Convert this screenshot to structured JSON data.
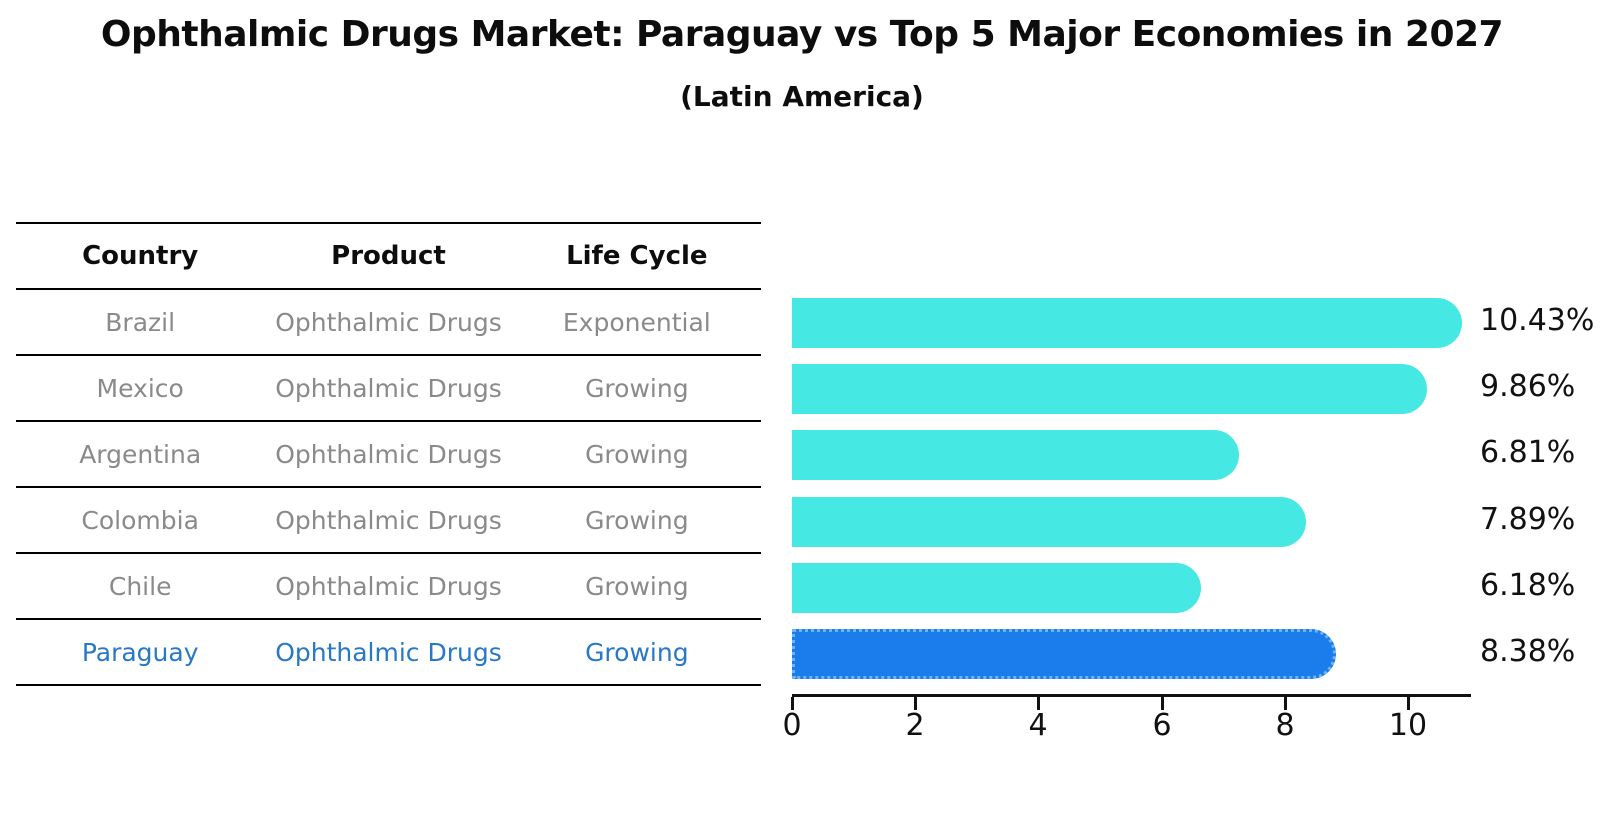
{
  "title": "Ophthalmic Drugs Market: Paraguay vs Top 5 Major Economies in 2027",
  "subtitle": "(Latin America)",
  "table": {
    "headers": [
      "Country",
      "Product",
      "Life Cycle"
    ],
    "rows": [
      {
        "country": "Brazil",
        "product": "Ophthalmic Drugs",
        "life_cycle": "Exponential",
        "highlight": false
      },
      {
        "country": "Mexico",
        "product": "Ophthalmic Drugs",
        "life_cycle": "Growing",
        "highlight": false
      },
      {
        "country": "Argentina",
        "product": "Ophthalmic Drugs",
        "life_cycle": "Growing",
        "highlight": false
      },
      {
        "country": "Colombia",
        "product": "Ophthalmic Drugs",
        "life_cycle": "Growing",
        "highlight": false
      },
      {
        "country": "Chile",
        "product": "Ophthalmic Drugs",
        "life_cycle": "Growing",
        "highlight": false
      },
      {
        "country": "Paraguay",
        "product": "Ophthalmic Drugs",
        "life_cycle": "Growing",
        "highlight": true
      }
    ]
  },
  "chart_data": {
    "type": "bar",
    "orientation": "horizontal",
    "title": "Ophthalmic Drugs Market: Paraguay vs Top 5 Major Economies in 2027",
    "subtitle": "(Latin America)",
    "categories": [
      "Brazil",
      "Mexico",
      "Argentina",
      "Colombia",
      "Chile",
      "Paraguay"
    ],
    "values": [
      10.43,
      9.86,
      6.81,
      7.89,
      6.18,
      8.38
    ],
    "value_labels": [
      "10.43%",
      "9.86%",
      "6.81%",
      "7.89%",
      "6.18%",
      "8.38%"
    ],
    "highlight_index": 5,
    "xlim": [
      0,
      11
    ],
    "xticks": [
      "0",
      "2",
      "4",
      "6",
      "8",
      "10"
    ],
    "xtick_values": [
      0,
      2,
      4,
      6,
      8,
      10
    ],
    "grid": false,
    "legend": "none",
    "bar_color": "#45e8e3",
    "highlight_bar_color": "#1b7ceb",
    "highlight_border_color": "#70b4f4",
    "highlight_text_color": "#2878c8",
    "row_text_color": "#8a8a8a"
  }
}
